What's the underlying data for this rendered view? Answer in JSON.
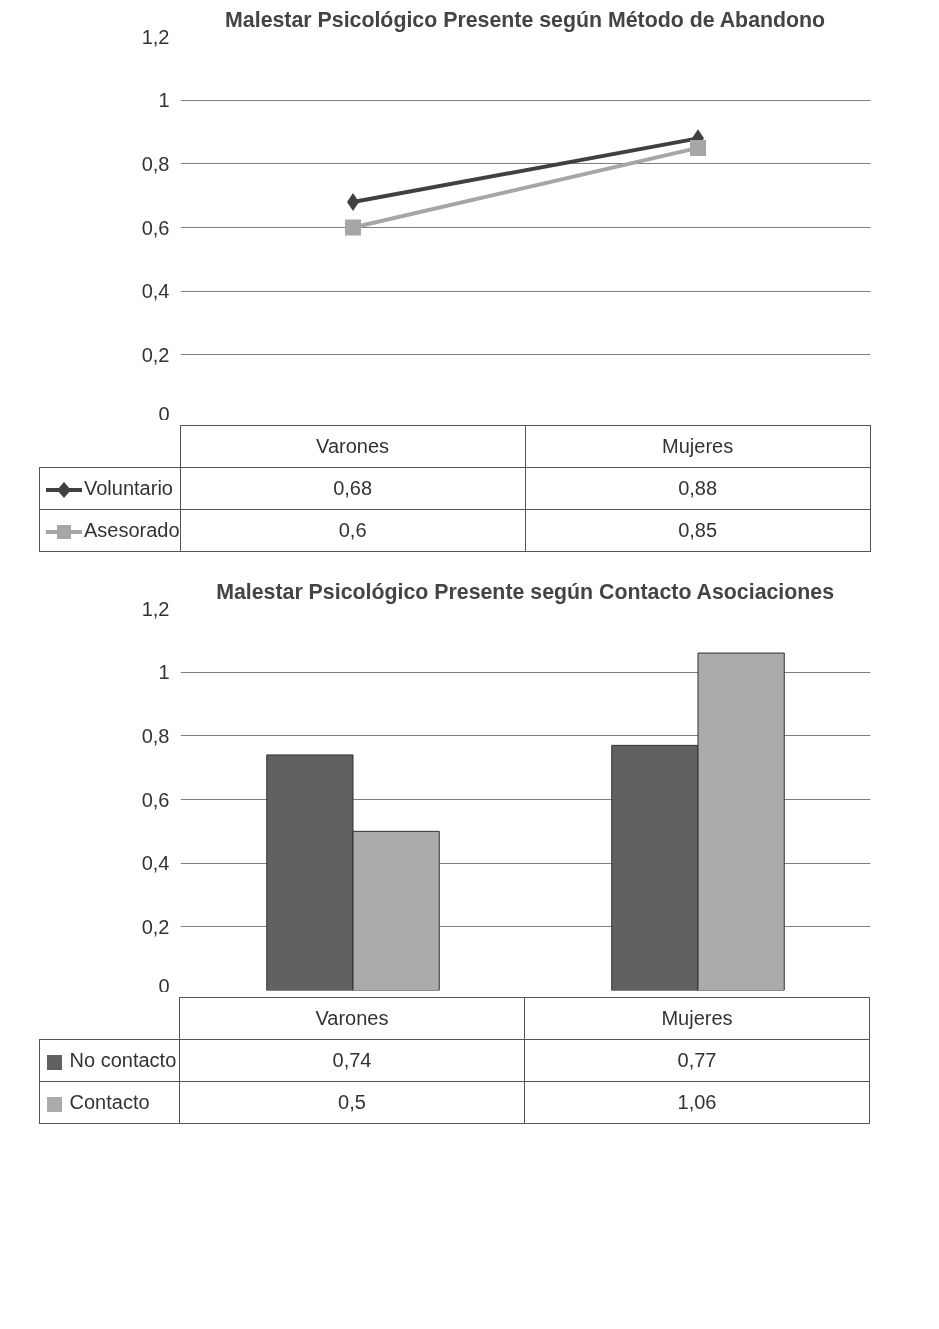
{
  "chart_data": [
    {
      "type": "line",
      "title": "Malestar Psicológico Presente según Método de Abandono",
      "categories": [
        "Varones",
        "Mujeres"
      ],
      "series": [
        {
          "name": "Voluntario",
          "color": "#404040",
          "marker": "diamond",
          "values": [
            0.68,
            0.88
          ],
          "value_labels": [
            "0,68",
            "0,88"
          ]
        },
        {
          "name": "Asesorado",
          "color": "#a6a6a6",
          "marker": "square",
          "values": [
            0.6,
            0.85
          ],
          "value_labels": [
            "0,6",
            "0,85"
          ]
        }
      ],
      "ylim": [
        0,
        1.2
      ],
      "yticks": [
        0,
        {
          "value": 0.2,
          "label": "0,2"
        },
        {
          "value": 0.4,
          "label": "0,4"
        },
        {
          "value": 0.6,
          "label": "0,6"
        },
        {
          "value": 0.8,
          "label": "0,8"
        },
        1,
        {
          "value": 1.2,
          "label": "1,2"
        }
      ],
      "grid": "y",
      "legend": "bottom",
      "line_style": "solid"
    },
    {
      "type": "bar",
      "title": "Malestar Psicológico Presente según Contacto Asociaciones",
      "categories": [
        "Varones",
        "Mujeres"
      ],
      "series": [
        {
          "name": "No contacto",
          "color": "#616161",
          "values": [
            0.74,
            0.77
          ],
          "value_labels": [
            "0,74",
            "0,77"
          ]
        },
        {
          "name": "Contacto",
          "color": "#ababab",
          "values": [
            0.5,
            1.06
          ],
          "value_labels": [
            "0,5",
            "1,06"
          ]
        }
      ],
      "ylim": [
        0,
        1.2
      ],
      "yticks": [
        0,
        {
          "value": 0.2,
          "label": "0,2"
        },
        {
          "value": 0.4,
          "label": "0,4"
        },
        {
          "value": 0.6,
          "label": "0,6"
        },
        {
          "value": 0.8,
          "label": "0,8"
        },
        1,
        {
          "value": 1.2,
          "label": "1,2"
        }
      ],
      "grid": "y",
      "legend": "bottom"
    }
  ]
}
